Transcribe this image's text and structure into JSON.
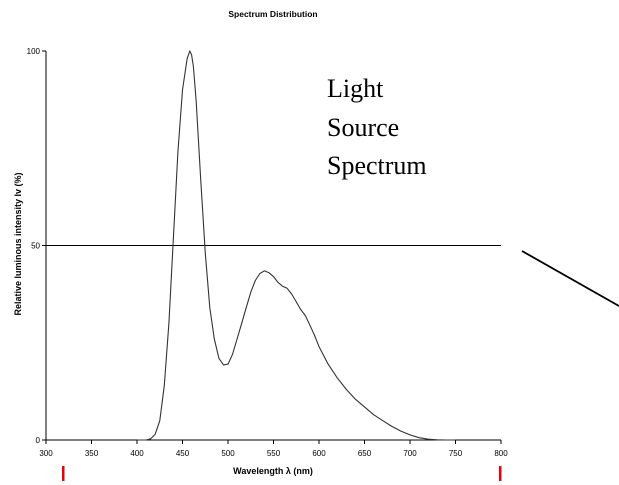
{
  "chart_data": {
    "type": "line",
    "title": "Spectrum Distribution",
    "xlabel": "Wavelength λ (nm)",
    "ylabel": "Relative luminous intensity Iv (%)",
    "xlim": [
      300,
      800
    ],
    "ylim": [
      0,
      100
    ],
    "xticks": [
      300,
      350,
      400,
      450,
      500,
      550,
      600,
      650,
      700,
      750,
      800
    ],
    "yticks": [
      0,
      50,
      100
    ],
    "grid": false,
    "annotation": [
      "Light",
      "Source",
      "Spectrum"
    ],
    "series": [
      {
        "x": [
          400,
          410,
          415,
          420,
          425,
          430,
          435,
          440,
          445,
          450,
          455,
          458,
          460,
          462,
          465,
          470,
          475,
          480,
          485,
          490,
          495,
          500,
          505,
          510,
          515,
          520,
          525,
          530,
          535,
          540,
          545,
          550,
          555,
          560,
          565,
          570,
          575,
          580,
          585,
          590,
          595,
          600,
          610,
          620,
          630,
          640,
          650,
          660,
          670,
          680,
          690,
          700,
          710,
          720,
          730,
          740,
          750
        ],
        "y": [
          0,
          0,
          0.3,
          1.5,
          5,
          14,
          30,
          52,
          74,
          90,
          98,
          100,
          99,
          96,
          87,
          67,
          48,
          34,
          26,
          21,
          19.3,
          19.5,
          22,
          26,
          30,
          34,
          38,
          41,
          42.8,
          43.5,
          43,
          42,
          40.5,
          39.5,
          39,
          37.5,
          35.5,
          33.5,
          32,
          29.5,
          27,
          24,
          19.5,
          16,
          13,
          10.5,
          8.5,
          6.5,
          5,
          3.5,
          2.3,
          1.3,
          0.6,
          0.2,
          0.05,
          0,
          0
        ]
      }
    ],
    "colors": {
      "curve": "#333333",
      "axis": "#000000",
      "marker": "#e8000b"
    }
  }
}
